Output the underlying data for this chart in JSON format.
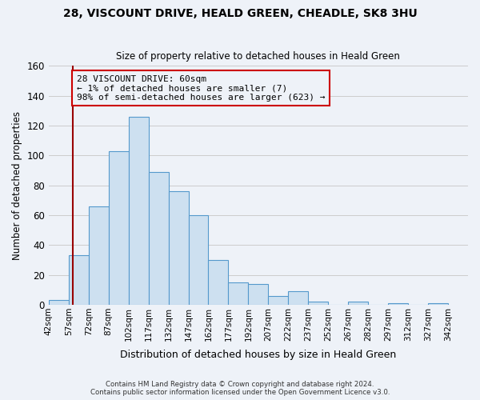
{
  "title1": "28, VISCOUNT DRIVE, HEALD GREEN, CHEADLE, SK8 3HU",
  "title2": "Size of property relative to detached houses in Heald Green",
  "xlabel": "Distribution of detached houses by size in Heald Green",
  "ylabel": "Number of detached properties",
  "footer1": "Contains HM Land Registry data © Crown copyright and database right 2024.",
  "footer2": "Contains public sector information licensed under the Open Government Licence v3.0.",
  "bar_left_edges": [
    42,
    57,
    72,
    87,
    102,
    117,
    132,
    147,
    162,
    177,
    192,
    207,
    222,
    237,
    252,
    267,
    282,
    297,
    312,
    327
  ],
  "bar_heights": [
    3,
    33,
    66,
    103,
    126,
    89,
    76,
    60,
    30,
    15,
    14,
    6,
    9,
    2,
    0,
    2,
    0,
    1,
    0,
    1
  ],
  "bin_width": 15,
  "bar_facecolor": "#cde0f0",
  "bar_edgecolor": "#5599cc",
  "bar_linewidth": 0.8,
  "grid_color": "#cccccc",
  "bg_color": "#eef2f8",
  "property_line_x": 60,
  "property_line_color": "#990000",
  "annotation_text": "28 VISCOUNT DRIVE: 60sqm\n← 1% of detached houses are smaller (7)\n98% of semi-detached houses are larger (623) →",
  "annotation_box_edgecolor": "#cc0000",
  "ylim": [
    0,
    160
  ],
  "yticks": [
    0,
    20,
    40,
    60,
    80,
    100,
    120,
    140,
    160
  ],
  "xtick_labels": [
    "42sqm",
    "57sqm",
    "72sqm",
    "87sqm",
    "102sqm",
    "117sqm",
    "132sqm",
    "147sqm",
    "162sqm",
    "177sqm",
    "192sqm",
    "207sqm",
    "222sqm",
    "237sqm",
    "252sqm",
    "267sqm",
    "282sqm",
    "297sqm",
    "312sqm",
    "327sqm",
    "342sqm"
  ],
  "xtick_positions": [
    42,
    57,
    72,
    87,
    102,
    117,
    132,
    147,
    162,
    177,
    192,
    207,
    222,
    237,
    252,
    267,
    282,
    297,
    312,
    327,
    342
  ],
  "xlim_left": 42,
  "xlim_right": 357
}
